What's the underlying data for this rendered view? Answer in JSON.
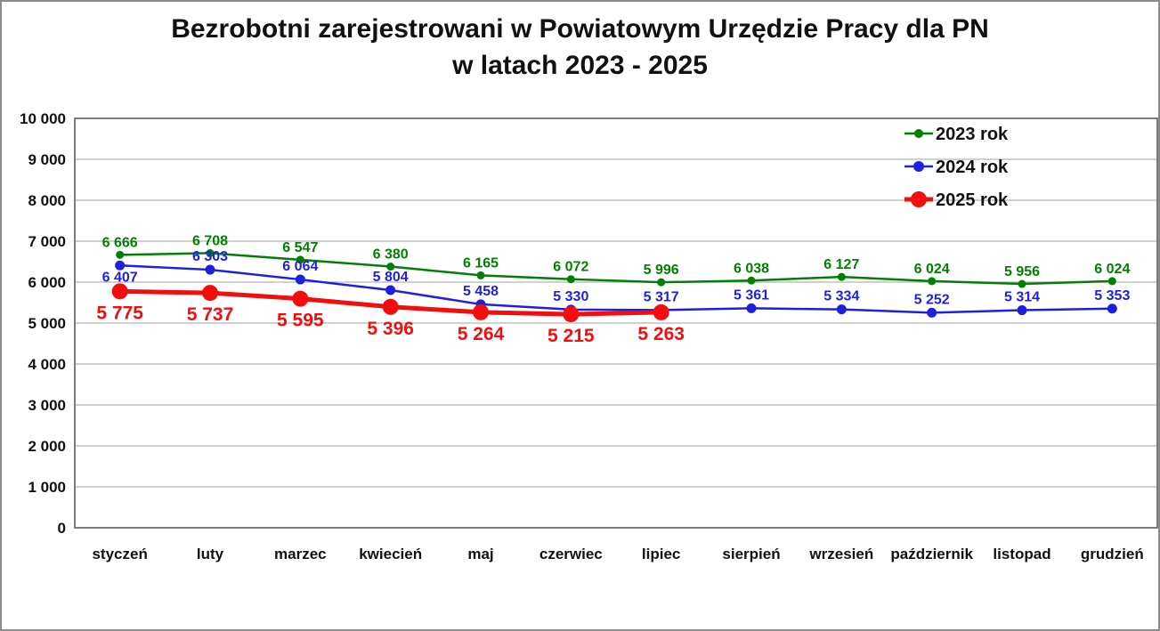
{
  "title": {
    "line1": "Bezrobotni zarejestrowani w Powiatowym Urzędzie Pracy dla PN",
    "line2": "w latach 2023 - 2025"
  },
  "chart_data": {
    "type": "line",
    "title": "Bezrobotni zarejestrowani w Powiatowym Urzędzie Pracy dla PN w latach 2023 - 2025",
    "categories": [
      "styczeń",
      "luty",
      "marzec",
      "kwiecień",
      "maj",
      "czerwiec",
      "lipiec",
      "sierpień",
      "wrzesień",
      "październik",
      "listopad",
      "grudzień"
    ],
    "series": [
      {
        "name": "2023 rok",
        "color": "#008000",
        "values": [
          6666,
          6708,
          6547,
          6380,
          6165,
          6072,
          5996,
          6038,
          6127,
          6024,
          5956,
          6024
        ]
      },
      {
        "name": "2024 rok",
        "color": "#1F1FE0",
        "values": [
          6407,
          6303,
          6064,
          5804,
          5458,
          5330,
          5317,
          5361,
          5334,
          5252,
          5314,
          5353
        ]
      },
      {
        "name": "2025 rok",
        "color": "#F00E0E",
        "values": [
          5775,
          5737,
          5595,
          5396,
          5264,
          5215,
          5263
        ]
      }
    ],
    "data_labels_visible": true,
    "number_format": "space thousands separator",
    "xlabel": "",
    "ylabel": "",
    "ylim": [
      0,
      10000
    ],
    "y_tick_interval": 1000,
    "y_tick_labels": [
      "0",
      "1 000",
      "2 000",
      "3 000",
      "4 000",
      "5 000",
      "6 000",
      "7 000",
      "8 000",
      "9 000",
      "10 000"
    ],
    "grid": "horizontal gridlines on",
    "legend_position": "top-right inside plot",
    "legend": [
      "2023 rok",
      "2024 rok",
      "2025 rok"
    ]
  },
  "colors": {
    "background": "#ffffff",
    "page_border": "#8c8c8c",
    "plot_border": "#6e6e6e",
    "gridline": "#b3b3b3",
    "axis_text": "#111111",
    "legend_text": "#111111",
    "series_2023": "#008000",
    "series_2024": "#1F1FE0",
    "series_2025": "#F00E0E"
  }
}
